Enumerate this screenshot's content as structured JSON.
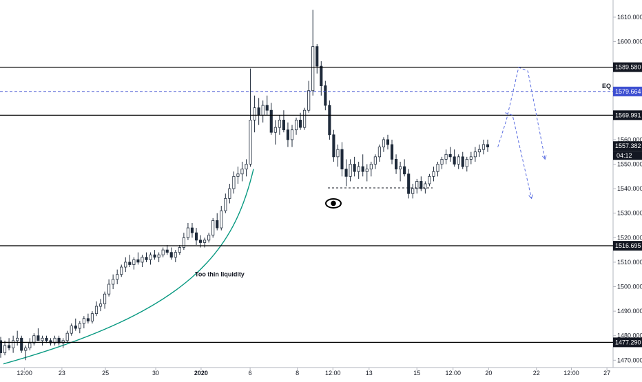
{
  "chart_data": {
    "type": "candlestick",
    "title": "",
    "y_axis": {
      "range": [
        1467,
        1617
      ],
      "ticks": [
        "1610.000",
        "1600.000",
        "1590.000",
        "1580.000",
        "1570.000",
        "1560.000",
        "1550.000",
        "1540.000",
        "1530.000",
        "1520.000",
        "1510.000",
        "1500.000",
        "1490.000",
        "1480.000",
        "1470.000"
      ],
      "tick_values": [
        1610,
        1600,
        1590,
        1580,
        1570,
        1560,
        1550,
        1540,
        1530,
        1520,
        1510,
        1500,
        1490,
        1480,
        1470
      ]
    },
    "x_axis": {
      "ticks": [
        {
          "label": "12:00",
          "pos": 0.04
        },
        {
          "label": "23",
          "pos": 0.101
        },
        {
          "label": "25",
          "pos": 0.172
        },
        {
          "label": "30",
          "pos": 0.254
        },
        {
          "label": "2020",
          "pos": 0.328,
          "bold": true
        },
        {
          "label": "6",
          "pos": 0.408
        },
        {
          "label": "8",
          "pos": 0.485
        },
        {
          "label": "12:00",
          "pos": 0.543
        },
        {
          "label": "13",
          "pos": 0.602
        },
        {
          "label": "15",
          "pos": 0.68
        },
        {
          "label": "12:00",
          "pos": 0.739
        },
        {
          "label": "20",
          "pos": 0.797
        },
        {
          "label": "22",
          "pos": 0.875
        },
        {
          "label": "12:00",
          "pos": 0.932
        },
        {
          "label": "27",
          "pos": 0.99
        }
      ]
    },
    "horizontal_levels": [
      {
        "value": 1589.58,
        "label": "1589.580",
        "style": "solid",
        "color": "#000000"
      },
      {
        "value": 1579.664,
        "label": "1579.664",
        "style": "dashed",
        "color": "#3d4fd1",
        "tag": "EQ"
      },
      {
        "value": 1569.991,
        "label": "1569.991",
        "style": "solid",
        "color": "#000000"
      },
      {
        "value": 1516.695,
        "label": "1516.695",
        "style": "solid",
        "color": "#000000"
      },
      {
        "value": 1477.29,
        "label": "1477.290",
        "style": "solid",
        "color": "#000000"
      }
    ],
    "last_price": {
      "value": 1557.382,
      "label": "1557.382",
      "countdown": "04:12"
    },
    "annotations": [
      {
        "text": "Too thin liquidity",
        "price": 1505
      }
    ],
    "liquidity_line": {
      "price": 1540.3
    },
    "projection_path": [
      {
        "t": 0.812,
        "p": 1557
      },
      {
        "t": 0.826,
        "p": 1568
      },
      {
        "t": 0.846,
        "p": 1589.5
      },
      {
        "t": 0.861,
        "p": 1588
      },
      {
        "t": 0.889,
        "p": 1552
      }
    ],
    "projection_path_2": [
      {
        "t": 0.824,
        "p": 1571
      },
      {
        "t": 0.836,
        "p": 1570
      },
      {
        "t": 0.867,
        "p": 1536
      }
    ],
    "ohlc": [
      [
        1478,
        1479.5,
        1471,
        1473
      ],
      [
        1473,
        1478,
        1472,
        1476
      ],
      [
        1476,
        1479,
        1474,
        1475
      ],
      [
        1475,
        1480,
        1473,
        1478
      ],
      [
        1478,
        1482,
        1476,
        1479
      ],
      [
        1479,
        1480,
        1473,
        1474
      ],
      [
        1474,
        1476,
        1470,
        1475
      ],
      [
        1475,
        1479,
        1474,
        1477
      ],
      [
        1477,
        1481,
        1476,
        1480
      ],
      [
        1480,
        1483,
        1479,
        1478
      ],
      [
        1478,
        1480,
        1476,
        1479
      ],
      [
        1479,
        1480,
        1477,
        1478
      ],
      [
        1478,
        1479,
        1476,
        1477
      ],
      [
        1477,
        1480,
        1476,
        1479
      ],
      [
        1479,
        1480,
        1476,
        1477
      ],
      [
        1477,
        1479,
        1475,
        1478
      ],
      [
        1478,
        1482,
        1477,
        1481
      ],
      [
        1481,
        1485,
        1480,
        1484
      ],
      [
        1484,
        1487,
        1482,
        1483
      ],
      [
        1483,
        1486,
        1481,
        1485
      ],
      [
        1485,
        1488,
        1483,
        1487
      ],
      [
        1487,
        1489,
        1485,
        1486
      ],
      [
        1486,
        1490,
        1485,
        1489
      ],
      [
        1489,
        1494,
        1488,
        1492
      ],
      [
        1492,
        1495,
        1490,
        1493
      ],
      [
        1493,
        1498,
        1491,
        1497
      ],
      [
        1497,
        1503,
        1496,
        1501
      ],
      [
        1501,
        1505,
        1499,
        1503
      ],
      [
        1503,
        1507,
        1501,
        1505
      ],
      [
        1505,
        1509,
        1504,
        1508
      ],
      [
        1508,
        1512,
        1506,
        1510
      ],
      [
        1510,
        1513,
        1508,
        1509
      ],
      [
        1509,
        1512,
        1507,
        1511
      ],
      [
        1511,
        1514,
        1509,
        1510
      ],
      [
        1510,
        1513,
        1508,
        1512
      ],
      [
        1512,
        1514,
        1510,
        1511
      ],
      [
        1511,
        1514,
        1509,
        1513
      ],
      [
        1513,
        1515,
        1511,
        1512
      ],
      [
        1512,
        1514,
        1510,
        1513
      ],
      [
        1513,
        1516,
        1512,
        1515
      ],
      [
        1515,
        1517,
        1513,
        1514
      ],
      [
        1514,
        1516,
        1511,
        1512
      ],
      [
        1512,
        1515,
        1510,
        1514
      ],
      [
        1514,
        1517,
        1513,
        1516
      ],
      [
        1516,
        1522,
        1515,
        1520
      ],
      [
        1520,
        1526,
        1519,
        1524
      ],
      [
        1524,
        1526,
        1520,
        1522
      ],
      [
        1522,
        1524,
        1517,
        1519
      ],
      [
        1519,
        1521,
        1516,
        1518
      ],
      [
        1518,
        1520,
        1516,
        1519
      ],
      [
        1519,
        1522,
        1518,
        1521
      ],
      [
        1521,
        1528,
        1520,
        1527
      ],
      [
        1527,
        1530,
        1523,
        1524
      ],
      [
        1524,
        1533,
        1523,
        1531
      ],
      [
        1531,
        1538,
        1530,
        1536
      ],
      [
        1536,
        1542,
        1534,
        1540
      ],
      [
        1540,
        1547,
        1538,
        1545
      ],
      [
        1545,
        1549,
        1542,
        1546
      ],
      [
        1546,
        1551,
        1543,
        1548
      ],
      [
        1548,
        1552,
        1545,
        1550
      ],
      [
        1550,
        1589,
        1549,
        1568
      ],
      [
        1568,
        1578,
        1563,
        1573
      ],
      [
        1573,
        1577,
        1566,
        1570
      ],
      [
        1570,
        1576,
        1567,
        1574
      ],
      [
        1574,
        1578,
        1570,
        1572
      ],
      [
        1572,
        1575,
        1562,
        1563
      ],
      [
        1563,
        1568,
        1558,
        1565
      ],
      [
        1565,
        1570,
        1562,
        1568
      ],
      [
        1568,
        1572,
        1563,
        1564
      ],
      [
        1564,
        1567,
        1557,
        1560
      ],
      [
        1560,
        1566,
        1557,
        1564
      ],
      [
        1564,
        1569,
        1562,
        1568
      ],
      [
        1568,
        1571,
        1564,
        1565
      ],
      [
        1565,
        1573,
        1564,
        1572
      ],
      [
        1572,
        1584,
        1571,
        1580
      ],
      [
        1580,
        1613,
        1578,
        1598
      ],
      [
        1598,
        1599,
        1587,
        1590
      ],
      [
        1590,
        1592,
        1578,
        1582
      ],
      [
        1582,
        1584,
        1572,
        1574
      ],
      [
        1574,
        1576,
        1560,
        1562
      ],
      [
        1562,
        1564,
        1551,
        1553
      ],
      [
        1553,
        1558,
        1549,
        1556
      ],
      [
        1556,
        1559,
        1545,
        1548
      ],
      [
        1548,
        1552,
        1541,
        1545
      ],
      [
        1545,
        1552,
        1543,
        1550
      ],
      [
        1550,
        1553,
        1545,
        1547
      ],
      [
        1547,
        1551,
        1544,
        1549
      ],
      [
        1549,
        1554,
        1545,
        1547
      ],
      [
        1547,
        1550,
        1543,
        1548
      ],
      [
        1548,
        1551,
        1545,
        1550
      ],
      [
        1550,
        1554,
        1548,
        1553
      ],
      [
        1553,
        1558,
        1551,
        1557
      ],
      [
        1557,
        1561,
        1555,
        1560
      ],
      [
        1560,
        1562,
        1556,
        1558
      ],
      [
        1558,
        1560,
        1550,
        1552
      ],
      [
        1552,
        1554,
        1546,
        1548
      ],
      [
        1548,
        1551,
        1543,
        1549
      ],
      [
        1549,
        1552,
        1545,
        1546
      ],
      [
        1546,
        1548,
        1536,
        1538
      ],
      [
        1538,
        1542,
        1536,
        1540
      ],
      [
        1540,
        1544,
        1538,
        1543
      ],
      [
        1543,
        1545,
        1539,
        1540
      ],
      [
        1540,
        1543,
        1538,
        1542
      ],
      [
        1542,
        1546,
        1541,
        1545
      ],
      [
        1545,
        1549,
        1543,
        1547
      ],
      [
        1547,
        1551,
        1545,
        1550
      ],
      [
        1550,
        1553,
        1548,
        1552
      ],
      [
        1552,
        1556,
        1550,
        1554
      ],
      [
        1554,
        1557,
        1551,
        1553
      ],
      [
        1553,
        1556,
        1549,
        1550
      ],
      [
        1550,
        1554,
        1548,
        1553
      ],
      [
        1553,
        1555,
        1548,
        1549
      ],
      [
        1549,
        1553,
        1547,
        1552
      ],
      [
        1552,
        1555,
        1550,
        1553
      ],
      [
        1553,
        1557,
        1551,
        1555
      ],
      [
        1555,
        1558,
        1553,
        1556
      ],
      [
        1556,
        1560,
        1554,
        1558
      ],
      [
        1558,
        1560,
        1555,
        1557
      ]
    ]
  }
}
